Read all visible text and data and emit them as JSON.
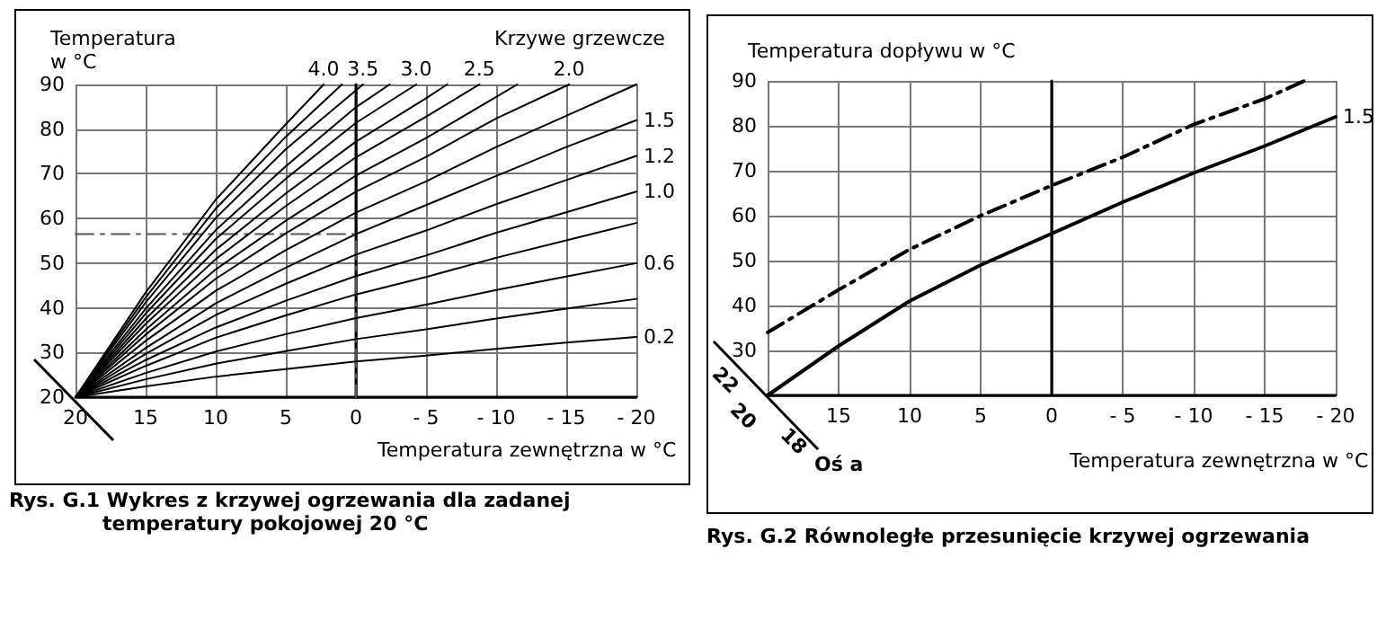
{
  "chart_data": [
    {
      "type": "line",
      "title": "Rys. G.1 Wykres z  krzywej ogrzewania dla zadanej temperatury pokojowej 20 °C",
      "ylabel": "Temperatura w °C",
      "xlabel": "Temperatura zewnętrzna w °C",
      "legend_title": "Krzywe grzewcze",
      "xlim": [
        20,
        -20
      ],
      "xticks": [
        20,
        15,
        10,
        5,
        0,
        {
          "value": -5,
          "label": "- 5"
        },
        {
          "value": -10,
          "label": "- 10"
        },
        {
          "value": -15,
          "label": "- 15"
        },
        {
          "value": -20,
          "label": "- 20"
        }
      ],
      "ylim": [
        20,
        90
      ],
      "yticks": [
        20,
        30,
        40,
        50,
        60,
        70,
        80,
        90
      ],
      "grid": true,
      "marker": "none",
      "series": [
        {
          "name": "0.2",
          "color": "#000000",
          "x": [
            20,
            15,
            10,
            5,
            0,
            -5,
            -10,
            -15,
            -20
          ],
          "values": [
            20,
            22.4,
            24.6,
            26.3,
            28,
            29.3,
            30.8,
            32.2,
            33.5
          ]
        },
        {
          "color": "#000000",
          "x": [
            20,
            15,
            10,
            5,
            0,
            -5,
            -10,
            -15,
            -20
          ],
          "values": [
            20,
            24,
            27.5,
            30.3,
            33,
            35.2,
            37.6,
            39.8,
            42
          ]
        },
        {
          "name": "0.6",
          "color": "#000000",
          "x": [
            20,
            15,
            10,
            5,
            0,
            -5,
            -10,
            -15,
            -20
          ],
          "values": [
            20,
            25.4,
            30.2,
            34.1,
            37.7,
            40.7,
            44,
            47,
            50
          ]
        },
        {
          "color": "#000000",
          "x": [
            20,
            15,
            10,
            5,
            0,
            -5,
            -10,
            -15,
            -20
          ],
          "values": [
            20,
            27,
            33.3,
            38.3,
            43,
            46.9,
            51.2,
            55.1,
            59
          ]
        },
        {
          "name": "1.0",
          "color": "#000000",
          "x": [
            20,
            15,
            10,
            5,
            0,
            -5,
            -10,
            -15,
            -20
          ],
          "values": [
            20,
            28.3,
            35.6,
            41.6,
            47.1,
            51.7,
            56.8,
            61.4,
            66
          ]
        },
        {
          "name": "1.2",
          "color": "#000000",
          "x": [
            20,
            15,
            10,
            5,
            0,
            -5,
            -10,
            -15,
            -20
          ],
          "values": [
            20,
            29.7,
            38.4,
            45.4,
            51.9,
            57.3,
            63.2,
            68.6,
            74
          ]
        },
        {
          "name": "1.5",
          "color": "#000000",
          "x": [
            20,
            15,
            10,
            5,
            0,
            -5,
            -10,
            -15,
            -20
          ],
          "values": [
            20,
            31,
            41,
            49,
            56.5,
            63,
            69.5,
            76,
            82
          ]
        },
        {
          "color": "#000000",
          "x": [
            20,
            15,
            10,
            5,
            0,
            -5,
            -10,
            -15,
            -20
          ],
          "values": [
            20,
            32.6,
            43.8,
            52.9,
            61.3,
            68.3,
            76,
            83,
            90
          ]
        },
        {
          "name": "2.0",
          "color": "#000000",
          "x": [
            20,
            15,
            10,
            5,
            0,
            -5,
            -10,
            -15.2
          ],
          "values": [
            20,
            34,
            46.5,
            56.7,
            66,
            73.8,
            82.4,
            90
          ]
        },
        {
          "color": "#000000",
          "x": [
            20,
            15,
            10,
            5,
            0,
            -5,
            -10,
            -11.5
          ],
          "values": [
            20,
            35.1,
            48.6,
            59.5,
            69.6,
            78,
            87.2,
            90
          ]
        },
        {
          "name": "2.5",
          "color": "#000000",
          "x": [
            20,
            15,
            10,
            5,
            0,
            -5,
            -8.8
          ],
          "values": [
            20,
            36.4,
            50.9,
            62.8,
            73.7,
            82.8,
            90
          ]
        },
        {
          "color": "#000000",
          "x": [
            20,
            15,
            10,
            5,
            0,
            -5,
            -6.5
          ],
          "values": [
            20,
            37.5,
            53,
            65.6,
            77.2,
            86.9,
            90
          ]
        },
        {
          "name": "3.0",
          "color": "#000000",
          "x": [
            20,
            15,
            10,
            5,
            0,
            -4.3
          ],
          "values": [
            20,
            38.7,
            55.4,
            68.9,
            81.4,
            90
          ]
        },
        {
          "color": "#000000",
          "x": [
            20,
            15,
            10,
            5,
            0,
            -2.4
          ],
          "values": [
            20,
            39.8,
            57.4,
            71.7,
            84.9,
            90
          ]
        },
        {
          "name": "3.5",
          "color": "#000000",
          "x": [
            20,
            15,
            10,
            5,
            -0.5
          ],
          "values": [
            20,
            41.2,
            60.1,
            75.5,
            90
          ]
        },
        {
          "color": "#000000",
          "x": [
            20,
            15,
            10,
            5,
            1
          ],
          "values": [
            20,
            42.3,
            62.2,
            78.3,
            90
          ]
        },
        {
          "name": "4.0",
          "color": "#000000",
          "x": [
            20,
            15,
            10,
            5,
            2.3
          ],
          "values": [
            20,
            43.4,
            64.2,
            81.1,
            90
          ]
        },
        {
          "color": "#555555",
          "line_style": "dashed",
          "x": [
            20,
            0,
            0
          ],
          "values": [
            56.5,
            56.5,
            20
          ]
        }
      ]
    },
    {
      "type": "line",
      "title": "Rys. G.2 Równoległe przesunięcie krzywej ogrzewania",
      "ylabel": "Temperatura dopływu w  °C",
      "xlabel": "Temperatura zewnętrzna w  °C",
      "annotations": [
        "22",
        "20",
        "18",
        "Oś a"
      ],
      "xlim": [
        20,
        -20
      ],
      "xticks": [
        {
          "value": 20,
          "label": null
        },
        15,
        10,
        5,
        0,
        {
          "value": -5,
          "label": "- 5"
        },
        {
          "value": -10,
          "label": "- 10"
        },
        {
          "value": -15,
          "label": "- 15"
        },
        {
          "value": -20,
          "label": "- 20"
        }
      ],
      "ylim": [
        20,
        90
      ],
      "yticks": [
        {
          "value": 20,
          "label": null
        },
        30,
        40,
        50,
        60,
        70,
        80,
        90
      ],
      "grid": true,
      "marker": "none",
      "series": [
        {
          "name": "1.5",
          "color": "#000000",
          "x": [
            20,
            15,
            10,
            5,
            0,
            -5,
            -10,
            -15,
            -20
          ],
          "values": [
            20,
            31,
            41,
            49,
            56,
            63,
            69.5,
            75.5,
            82
          ]
        },
        {
          "color": "#000000",
          "line_style": "dashed",
          "x": [
            20,
            15,
            10,
            5,
            0,
            -5,
            -10,
            -15,
            -17.8
          ],
          "values": [
            34,
            43.5,
            52.5,
            60,
            66.7,
            73,
            80.3,
            86,
            90
          ]
        }
      ]
    }
  ]
}
